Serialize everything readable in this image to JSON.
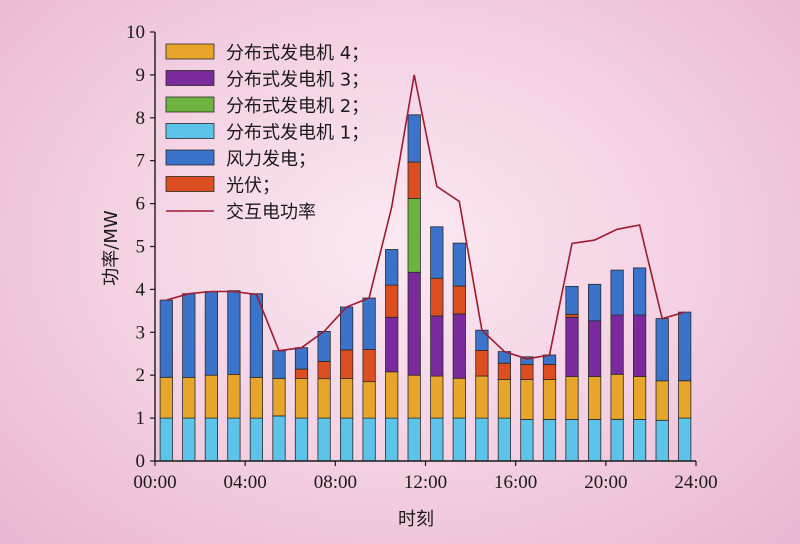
{
  "chart_data": {
    "type": "bar",
    "stacked": true,
    "xlabel": "时刻",
    "ylabel": "功率/MW",
    "ylim": [
      0,
      10
    ],
    "yticks": [
      "0",
      "1",
      "2",
      "3",
      "4",
      "5",
      "6",
      "7",
      "8",
      "9",
      "10"
    ],
    "xticks": [
      "00:00",
      "04:00",
      "08:00",
      "12:00",
      "16:00",
      "20:00",
      "24:00"
    ],
    "grid": false,
    "legend_position": "top-left",
    "hours": [
      1,
      2,
      3,
      4,
      5,
      6,
      7,
      8,
      9,
      10,
      11,
      12,
      13,
      14,
      15,
      16,
      17,
      18,
      19,
      20,
      21,
      22,
      23,
      24
    ],
    "series": [
      {
        "name": "分布式发电机 1",
        "color": "#5ec3e8",
        "values": [
          1.0,
          1.0,
          1.0,
          1.0,
          1.0,
          1.05,
          1.0,
          1.0,
          1.0,
          1.0,
          1.0,
          1.0,
          1.0,
          1.0,
          1.0,
          1.0,
          0.97,
          0.97,
          0.97,
          0.97,
          0.97,
          0.97,
          0.95,
          1.0
        ]
      },
      {
        "name": "分布式发电机 4",
        "color": "#e7a52b",
        "values": [
          0.95,
          0.95,
          1.0,
          1.02,
          0.95,
          0.87,
          0.92,
          0.92,
          0.92,
          0.85,
          1.08,
          1.0,
          0.98,
          0.93,
          0.98,
          0.9,
          0.93,
          0.93,
          1.0,
          1.0,
          1.05,
          1.0,
          0.92,
          0.87
        ]
      },
      {
        "name": "分布式发电机 3",
        "color": "#7a2a9c",
        "values": [
          0,
          0,
          0,
          0,
          0,
          0,
          0,
          0,
          0,
          0,
          1.27,
          2.4,
          1.4,
          1.5,
          0,
          0,
          0,
          0,
          1.38,
          1.3,
          1.38,
          1.43,
          0,
          0
        ]
      },
      {
        "name": "分布式发电机 2",
        "color": "#6cb33f",
        "values": [
          0,
          0,
          0,
          0,
          0,
          0,
          0,
          0,
          0,
          0,
          0,
          1.72,
          0,
          0,
          0,
          0,
          0,
          0,
          0,
          0,
          0,
          0,
          0,
          0
        ]
      },
      {
        "name": "光伏",
        "color": "#dc4d1f",
        "values": [
          0,
          0,
          0,
          0,
          0,
          0,
          0.22,
          0.4,
          0.67,
          0.75,
          0.75,
          0.85,
          0.88,
          0.65,
          0.6,
          0.38,
          0.35,
          0.35,
          0.07,
          0,
          0,
          0,
          0,
          0
        ]
      },
      {
        "name": "风力发电",
        "color": "#3a73c9",
        "values": [
          1.8,
          1.95,
          1.95,
          1.95,
          1.95,
          0.65,
          0.5,
          0.7,
          1.0,
          1.2,
          0.83,
          1.1,
          1.2,
          1.0,
          0.47,
          0.27,
          0.18,
          0.22,
          0.65,
          0.85,
          1.05,
          1.1,
          1.45,
          1.6
        ]
      }
    ],
    "line_series": {
      "name": "交互电功率",
      "color": "#9e1b32",
      "values": [
        3.75,
        3.9,
        3.95,
        3.95,
        3.88,
        2.57,
        2.64,
        3.02,
        3.59,
        3.8,
        5.92,
        9.0,
        6.4,
        6.05,
        3.05,
        2.55,
        2.38,
        2.47,
        5.07,
        5.15,
        5.4,
        5.5,
        3.32,
        3.47
      ]
    },
    "legend_order": [
      "分布式发电机 4",
      "分布式发电机 3",
      "分布式发电机 2",
      "分布式发电机 1",
      "风力发电",
      "光伏",
      "交互电功率"
    ],
    "legend_suffix": "；"
  }
}
